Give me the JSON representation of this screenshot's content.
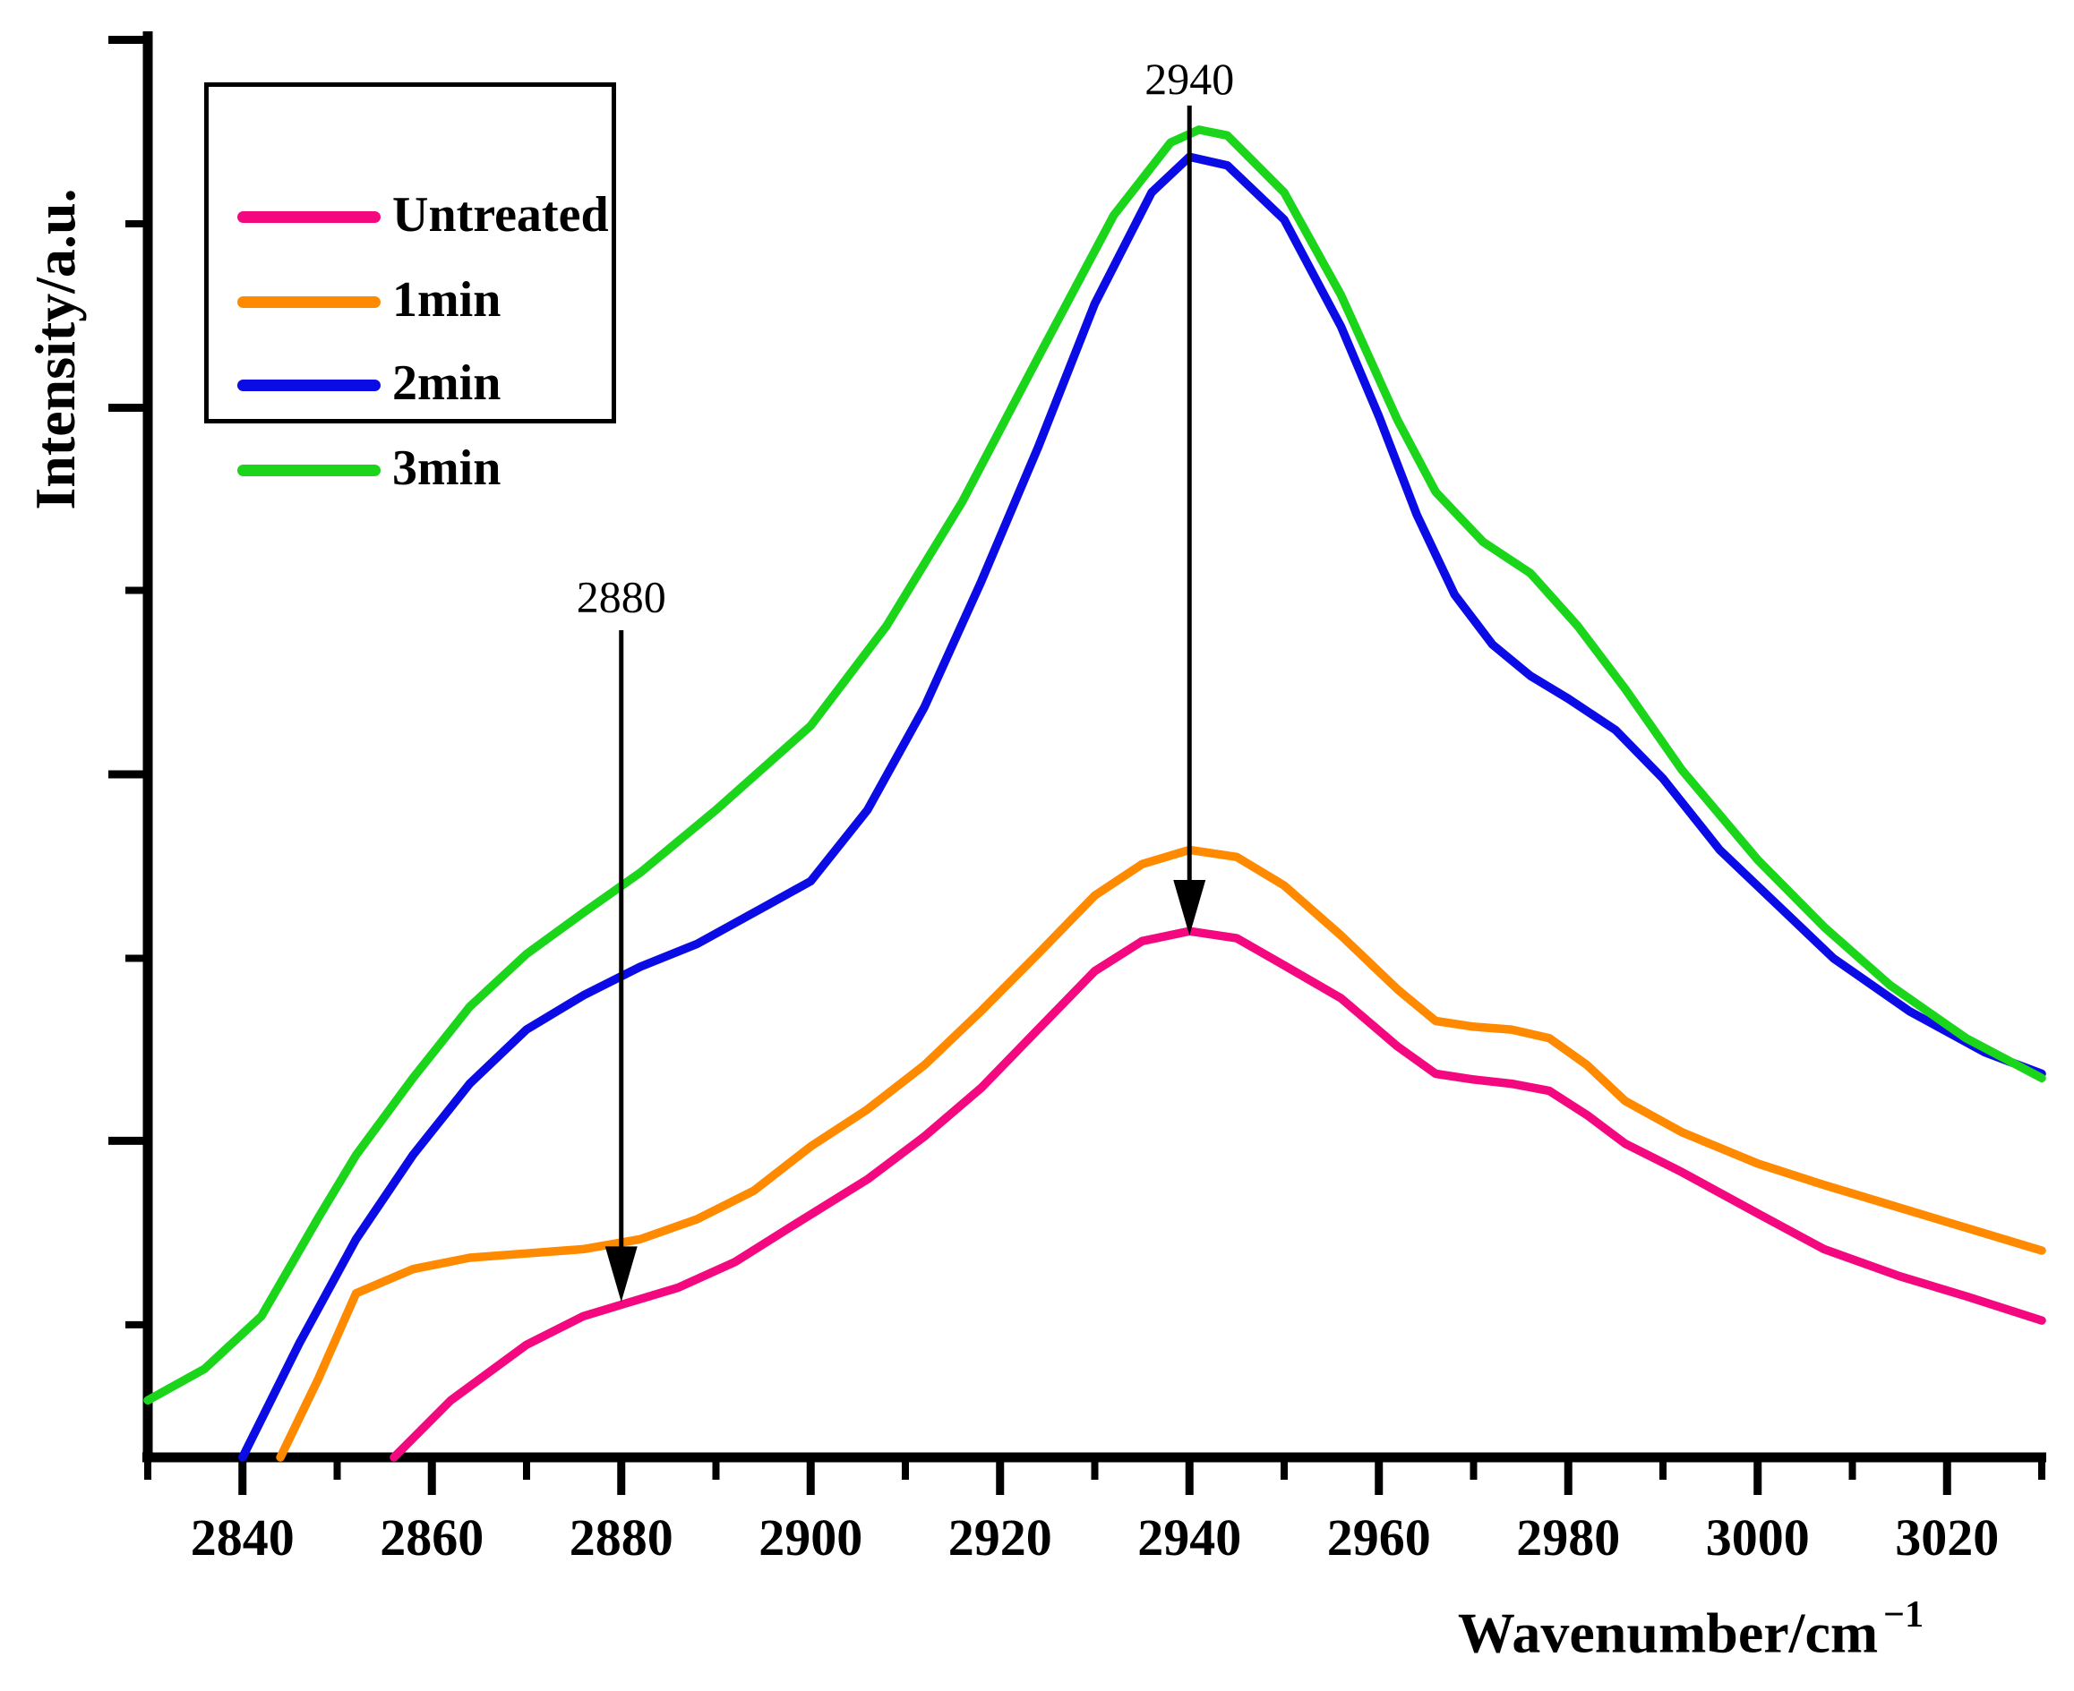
{
  "figure": {
    "background": "#FFFFFF",
    "axis_color": "#000000",
    "text_color": "#000000"
  },
  "chart_data": {
    "type": "line",
    "title": "",
    "xlabel": "Wavenumber/cm−1",
    "xlabel_base": "Wavenumber/cm",
    "xlabel_superscript": "−1",
    "ylabel": "Intensity/a.u.",
    "legend_position": "upper-left",
    "grid": false,
    "x_axis": {
      "min": 2830,
      "max": 3030,
      "major_ticks": [
        2840,
        2860,
        2880,
        2900,
        2920,
        2940,
        2960,
        2980,
        3000,
        3020
      ],
      "tick_labels": [
        "2840",
        "2860",
        "2880",
        "2900",
        "2920",
        "2940",
        "2960",
        "2980",
        "3000",
        "3020"
      ],
      "minor_ticks": [
        2830,
        2850,
        2870,
        2890,
        2910,
        2930,
        2950,
        2970,
        2990,
        3010,
        3030
      ]
    },
    "y_axis": {
      "min": 0,
      "max": 100,
      "unit": "a.u.",
      "labels_shown": false,
      "major_tick_positions": [
        99.4,
        73.6,
        47.9,
        22.2
      ],
      "minor_tick_positions": [
        86.5,
        60.8,
        35.0,
        9.3
      ]
    },
    "series": [
      {
        "name": "Untreated",
        "color": "#F40880",
        "points": [
          [
            2856,
            0
          ],
          [
            2862,
            4.0
          ],
          [
            2870,
            7.9
          ],
          [
            2876,
            9.9
          ],
          [
            2880,
            10.7
          ],
          [
            2886,
            11.9
          ],
          [
            2892,
            13.7
          ],
          [
            2898,
            16.2
          ],
          [
            2906,
            19.5
          ],
          [
            2912,
            22.5
          ],
          [
            2918,
            25.9
          ],
          [
            2924,
            30.0
          ],
          [
            2930,
            34.1
          ],
          [
            2935,
            36.2
          ],
          [
            2940,
            36.9
          ],
          [
            2945,
            36.4
          ],
          [
            2950,
            34.5
          ],
          [
            2956,
            32.2
          ],
          [
            2962,
            28.8
          ],
          [
            2966,
            26.9
          ],
          [
            2970,
            26.5
          ],
          [
            2974,
            26.2
          ],
          [
            2978,
            25.7
          ],
          [
            2982,
            24.0
          ],
          [
            2986,
            22.0
          ],
          [
            2992,
            20.0
          ],
          [
            3000,
            17.1
          ],
          [
            3007,
            14.6
          ],
          [
            3015,
            12.7
          ],
          [
            3022,
            11.3
          ],
          [
            3030,
            9.6
          ]
        ]
      },
      {
        "name": "1min",
        "color": "#FF8A00",
        "points": [
          [
            2844,
            0
          ],
          [
            2848,
            5.5
          ],
          [
            2852,
            11.5
          ],
          [
            2858,
            13.2
          ],
          [
            2864,
            14.0
          ],
          [
            2870,
            14.3
          ],
          [
            2876,
            14.6
          ],
          [
            2882,
            15.3
          ],
          [
            2888,
            16.7
          ],
          [
            2894,
            18.7
          ],
          [
            2900,
            21.8
          ],
          [
            2906,
            24.4
          ],
          [
            2912,
            27.5
          ],
          [
            2918,
            31.3
          ],
          [
            2924,
            35.3
          ],
          [
            2930,
            39.4
          ],
          [
            2935,
            41.6
          ],
          [
            2940,
            42.6
          ],
          [
            2945,
            42.1
          ],
          [
            2950,
            40.1
          ],
          [
            2956,
            36.6
          ],
          [
            2962,
            32.8
          ],
          [
            2966,
            30.6
          ],
          [
            2970,
            30.2
          ],
          [
            2974,
            30.0
          ],
          [
            2978,
            29.4
          ],
          [
            2982,
            27.5
          ],
          [
            2986,
            25.0
          ],
          [
            2992,
            22.8
          ],
          [
            3000,
            20.6
          ],
          [
            3007,
            19.1
          ],
          [
            3015,
            17.5
          ],
          [
            3022,
            16.1
          ],
          [
            3030,
            14.5
          ]
        ]
      },
      {
        "name": "2min",
        "color": "#0B0BE6",
        "points": [
          [
            2840,
            0
          ],
          [
            2846,
            8.0
          ],
          [
            2852,
            15.3
          ],
          [
            2858,
            21.2
          ],
          [
            2864,
            26.2
          ],
          [
            2870,
            30.0
          ],
          [
            2876,
            32.4
          ],
          [
            2882,
            34.4
          ],
          [
            2888,
            36.0
          ],
          [
            2894,
            38.2
          ],
          [
            2900,
            40.4
          ],
          [
            2906,
            45.4
          ],
          [
            2912,
            52.6
          ],
          [
            2918,
            61.4
          ],
          [
            2924,
            70.8
          ],
          [
            2930,
            80.9
          ],
          [
            2936,
            88.7
          ],
          [
            2940,
            91.2
          ],
          [
            2944,
            90.6
          ],
          [
            2950,
            86.8
          ],
          [
            2956,
            79.3
          ],
          [
            2960,
            73.0
          ],
          [
            2964,
            66.1
          ],
          [
            2968,
            60.5
          ],
          [
            2972,
            57.0
          ],
          [
            2976,
            54.8
          ],
          [
            2980,
            53.2
          ],
          [
            2985,
            51.0
          ],
          [
            2990,
            47.6
          ],
          [
            2996,
            42.6
          ],
          [
            3002,
            38.8
          ],
          [
            3008,
            35.0
          ],
          [
            3016,
            31.3
          ],
          [
            3024,
            28.4
          ],
          [
            3030,
            26.9
          ]
        ]
      },
      {
        "name": "3min",
        "color": "#1BD51B",
        "points": [
          [
            2830,
            4.0
          ],
          [
            2836,
            6.2
          ],
          [
            2842,
            9.9
          ],
          [
            2848,
            16.8
          ],
          [
            2852,
            21.2
          ],
          [
            2858,
            26.6
          ],
          [
            2864,
            31.6
          ],
          [
            2870,
            35.3
          ],
          [
            2876,
            38.2
          ],
          [
            2882,
            41.0
          ],
          [
            2890,
            45.4
          ],
          [
            2900,
            51.3
          ],
          [
            2908,
            58.3
          ],
          [
            2916,
            67.0
          ],
          [
            2924,
            77.1
          ],
          [
            2932,
            87.1
          ],
          [
            2938,
            92.2
          ],
          [
            2941,
            93.1
          ],
          [
            2944,
            92.7
          ],
          [
            2950,
            88.7
          ],
          [
            2956,
            81.5
          ],
          [
            2962,
            72.7
          ],
          [
            2966,
            67.7
          ],
          [
            2971,
            64.2
          ],
          [
            2976,
            62.0
          ],
          [
            2981,
            58.3
          ],
          [
            2986,
            53.9
          ],
          [
            2992,
            48.2
          ],
          [
            3000,
            41.9
          ],
          [
            3007,
            37.2
          ],
          [
            3014,
            33.1
          ],
          [
            3022,
            29.4
          ],
          [
            3030,
            26.6
          ]
        ]
      }
    ],
    "annotations": [
      {
        "label": "2880",
        "wavenumber": 2880,
        "label_intensity": 60.3,
        "arrow_from_intensity": 58.0,
        "arrow_to_intensity": 10.9
      },
      {
        "label": "2940",
        "wavenumber": 2940,
        "label_intensity": 96.6,
        "arrow_from_intensity": 94.8,
        "arrow_to_intensity": 36.6
      }
    ]
  },
  "legend": {
    "items": [
      {
        "label": "Untreated"
      },
      {
        "label": "1min"
      },
      {
        "label": "2min"
      },
      {
        "label": "3min"
      }
    ]
  }
}
